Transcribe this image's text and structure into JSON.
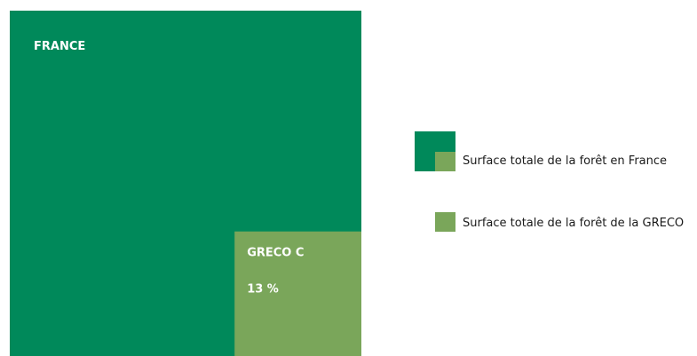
{
  "colors": {
    "france": "#00895a",
    "greco": "#7aa65a"
  },
  "chart_data": {
    "type": "treemap",
    "title": "",
    "total": {
      "name": "FRANCE",
      "share_percent": 100
    },
    "part": {
      "name": "GRECO C",
      "share_label": "13 %",
      "share_percent": 13
    },
    "legend": {
      "placement": "right",
      "items": [
        {
          "label": "Surface totale de la forêt en France"
        },
        {
          "label": "Surface totale de la forêt de la GRECO"
        }
      ]
    }
  }
}
